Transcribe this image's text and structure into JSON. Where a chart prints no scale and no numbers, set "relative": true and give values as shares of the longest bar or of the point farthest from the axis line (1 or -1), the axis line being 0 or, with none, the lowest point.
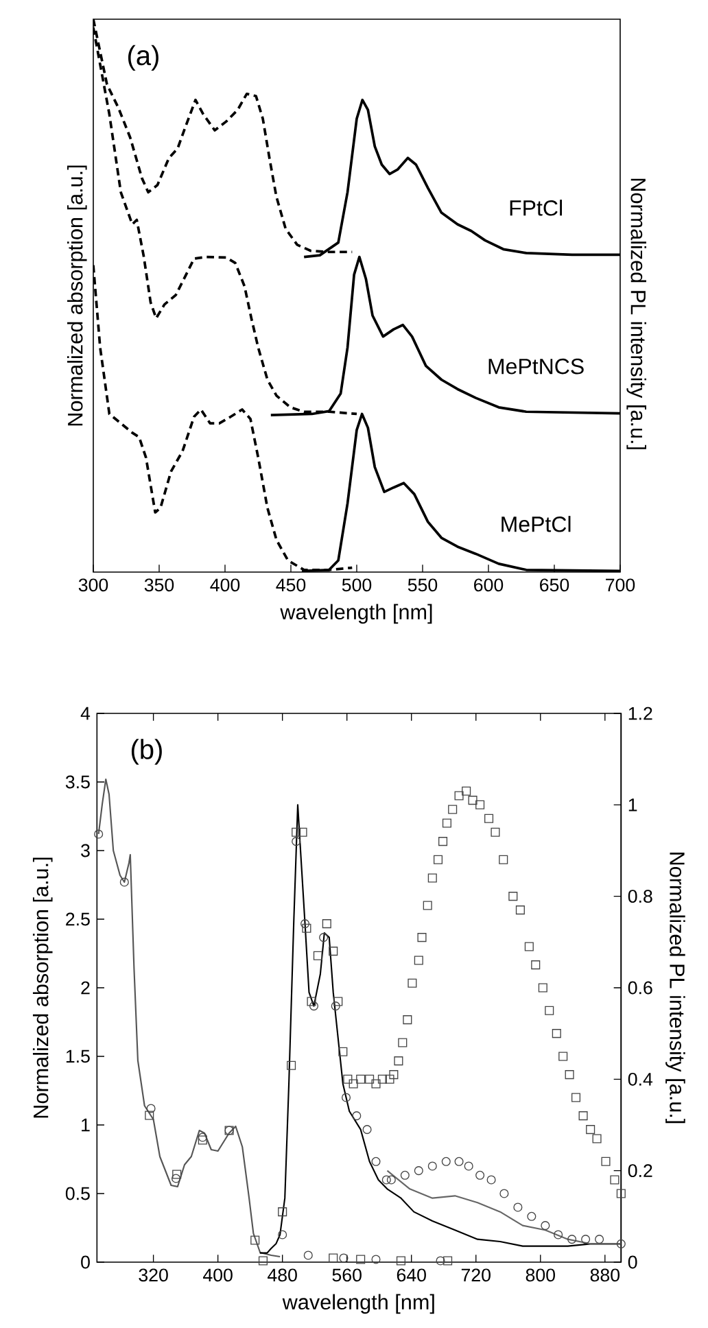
{
  "chart_data": [
    {
      "type": "line",
      "relative": true,
      "xlabel": "wavelength [nm]",
      "ylabel": "Normalized absorption [a.u.]",
      "y2label": "Normalized PL intensity [a.u.]",
      "annotations": [
        "(a)"
      ],
      "xlim": [
        300,
        700
      ],
      "xticks": [
        300,
        350,
        400,
        450,
        500,
        550,
        600,
        650,
        700
      ],
      "tick_labels": "x",
      "series": [
        {
          "color": "#000000",
          "line_style": "dashed",
          "x": [
            300,
            310.4,
            319,
            328,
            337,
            341.7,
            348.7,
            357.4,
            364,
            369.6,
            377.6,
            383.5,
            392.2,
            400.9,
            409.6,
            416.5,
            423.5,
            428.7,
            434,
            439,
            446,
            454.8,
            465.2,
            479,
            496.5
          ],
          "values": [
            1.0,
            0.882,
            0.84,
            0.786,
            0.712,
            0.687,
            0.7,
            0.749,
            0.766,
            0.803,
            0.854,
            0.828,
            0.799,
            0.815,
            0.836,
            0.865,
            0.861,
            0.82,
            0.745,
            0.679,
            0.621,
            0.592,
            0.581,
            0.579,
            0.579
          ]
        },
        {
          "name": "FPtCl",
          "color": "#000000",
          "line_style": "solid",
          "x": [
            460,
            472,
            486,
            493,
            500,
            504.3,
            508.5,
            513.7,
            519,
            525,
            531,
            538.8,
            545,
            554,
            564.3,
            576.5,
            587,
            597.4,
            611.3,
            628.7,
            663.5,
            700
          ],
          "values": [
            0.57,
            0.573,
            0.596,
            0.687,
            0.82,
            0.854,
            0.836,
            0.77,
            0.737,
            0.72,
            0.728,
            0.749,
            0.737,
            0.695,
            0.65,
            0.629,
            0.617,
            0.6,
            0.584,
            0.577,
            0.574,
            0.574
          ]
        },
        {
          "color": "#000000",
          "line_style": "dashed",
          "x": [
            300,
            312.2,
            320.9,
            329.6,
            333,
            338.3,
            343.5,
            347.7,
            354,
            362.6,
            369.6,
            376.5,
            385.2,
            400.9,
            407.8,
            414.8,
            420,
            425.2,
            432.2,
            439.1,
            449.6,
            460,
            479,
            500
          ],
          "values": [
            0.985,
            0.828,
            0.687,
            0.629,
            0.637,
            0.571,
            0.488,
            0.459,
            0.484,
            0.501,
            0.534,
            0.567,
            0.57,
            0.569,
            0.559,
            0.517,
            0.459,
            0.406,
            0.348,
            0.319,
            0.298,
            0.29,
            0.29,
            0.286
          ]
        },
        {
          "name": "MePtNCS",
          "color": "#000000",
          "line_style": "solid",
          "x": [
            434.8,
            466,
            479,
            487.8,
            493,
            498,
            502,
            507,
            512,
            520,
            528,
            535,
            542,
            552.5,
            564.3,
            576.5,
            590.4,
            607.8,
            628.7,
            700
          ],
          "values": [
            0.284,
            0.286,
            0.291,
            0.323,
            0.406,
            0.538,
            0.57,
            0.53,
            0.464,
            0.426,
            0.439,
            0.447,
            0.426,
            0.373,
            0.348,
            0.331,
            0.315,
            0.298,
            0.29,
            0.287
          ]
        },
        {
          "color": "#000000",
          "line_style": "dashed",
          "x": [
            300,
            305.2,
            312.2,
            320.9,
            329.6,
            334.8,
            340,
            347,
            351,
            359,
            367.8,
            376.5,
            381.7,
            388.7,
            395.7,
            404.3,
            413,
            419.3,
            425.2,
            432.2,
            439.1,
            447.8,
            460,
            479,
            496.5
          ],
          "values": [
            0.555,
            0.406,
            0.286,
            0.269,
            0.252,
            0.244,
            0.207,
            0.108,
            0.116,
            0.182,
            0.219,
            0.281,
            0.294,
            0.269,
            0.269,
            0.281,
            0.294,
            0.277,
            0.207,
            0.116,
            0.058,
            0.021,
            0.004,
            0.004,
            0.008
          ]
        },
        {
          "name": "MePtCl",
          "color": "#000000",
          "line_style": "solid",
          "x": [
            458.3,
            479,
            486,
            493,
            500,
            504,
            508.5,
            513.7,
            520.9,
            528,
            535.7,
            543.7,
            554,
            564.3,
            576.5,
            590.4,
            607.8,
            628.7,
            700
          ],
          "values": [
            0.002,
            0.004,
            0.021,
            0.124,
            0.257,
            0.286,
            0.261,
            0.19,
            0.145,
            0.153,
            0.161,
            0.141,
            0.091,
            0.062,
            0.046,
            0.033,
            0.015,
            0.004,
            0.002
          ]
        }
      ]
    },
    {
      "type": "line",
      "xlabel": "wavelength [nm]",
      "ylabel": "Normalized absorption [a.u.]",
      "y2label": "Normalized PL intensity [a.u.]",
      "annotations": [
        "(b)"
      ],
      "xlim": [
        250,
        900
      ],
      "xticks": [
        320,
        400,
        480,
        560,
        640,
        720,
        800,
        880
      ],
      "ylim": [
        0,
        4
      ],
      "yticks": [
        0,
        0.5,
        1,
        1.5,
        2,
        2.5,
        3,
        3.5,
        4
      ],
      "y2lim": [
        0,
        1.2
      ],
      "y2ticks": [
        0,
        0.2,
        0.4,
        0.6,
        0.8,
        1,
        1.2
      ],
      "series": [
        {
          "type": "line",
          "color": "#555555",
          "line_style": "solid",
          "x": [
            252,
            256.6,
            261,
            265,
            270.3,
            278.6,
            284,
            289.7,
            291.3,
            296,
            300.7,
            309,
            320,
            328,
            342,
            350,
            358.6,
            367,
            377,
            383.4,
            391.7,
            400,
            413.8,
            422,
            430.3,
            438.6,
            444,
            452.4,
            466.2,
            477
          ],
          "values": [
            3.12,
            3.34,
            3.52,
            3.41,
            3.0,
            2.82,
            2.77,
            2.91,
            2.97,
            2.14,
            1.47,
            1.14,
            1.04,
            0.77,
            0.56,
            0.55,
            0.71,
            0.77,
            0.96,
            0.94,
            0.82,
            0.81,
            0.94,
            0.99,
            0.84,
            0.47,
            0.21,
            0.07,
            0.05,
            0.04
          ]
        },
        {
          "type": "scatter",
          "marker": "circle",
          "color": "#444444",
          "x": [
            252,
            284,
            317,
            348,
            381,
            414,
            455,
            512,
            556,
            596,
            636,
            676
          ],
          "values": [
            3.12,
            2.77,
            1.12,
            0.61,
            0.91,
            0.96,
            null,
            0.05,
            0.03,
            0.02,
            null,
            0.01
          ]
        },
        {
          "type": "scatter",
          "marker": "square",
          "color": "#444444",
          "x": [
            315,
            349,
            381,
            414,
            446,
            456,
            543,
            577,
            627,
            685
          ],
          "values": [
            1.07,
            0.64,
            0.89,
            0.96,
            0.16,
            0.01,
            0.03,
            0.02,
            0.01,
            0.01
          ]
        },
        {
          "type": "line",
          "axis": "y2",
          "color": "#000000",
          "line_style": "solid",
          "x": [
            452,
            461,
            466,
            472,
            477,
            483,
            488,
            494,
            499,
            508,
            513,
            519,
            527,
            532,
            538,
            543,
            555,
            563,
            577,
            588,
            599,
            610,
            627,
            643,
            666,
            694,
            722,
            750,
            778,
            806,
            834,
            862,
            900
          ],
          "values": [
            0.02,
            0.02,
            0.03,
            0.04,
            0.06,
            0.14,
            0.39,
            0.74,
            1.0,
            0.74,
            0.59,
            0.56,
            0.63,
            0.72,
            0.71,
            0.59,
            0.39,
            0.33,
            0.29,
            0.22,
            0.18,
            0.16,
            0.14,
            0.11,
            0.09,
            0.07,
            0.05,
            0.045,
            0.035,
            0.035,
            0.035,
            0.04,
            0.04
          ]
        },
        {
          "type": "line",
          "axis": "y2",
          "color": "#666666",
          "line_style": "solid",
          "x": [
            610,
            638,
            666,
            694,
            722,
            750,
            778,
            806,
            834,
            862,
            900
          ],
          "values": [
            0.2,
            0.16,
            0.14,
            0.145,
            0.13,
            0.11,
            0.08,
            0.07,
            0.05,
            0.04,
            0.04
          ]
        },
        {
          "type": "scatter",
          "axis": "y2",
          "marker": "circle",
          "color": "#444444",
          "x": [
            480,
            497,
            502,
            508,
            519,
            531,
            546,
            559,
            572,
            585,
            596,
            609,
            615,
            632,
            649,
            666,
            683,
            699,
            711,
            725,
            739,
            755,
            772,
            789,
            806,
            822,
            839,
            856,
            873,
            900
          ],
          "values": [
            0.06,
            0.92,
            null,
            0.74,
            0.56,
            0.71,
            0.56,
            0.36,
            0.32,
            0.29,
            0.22,
            0.18,
            0.18,
            0.19,
            0.2,
            0.21,
            0.22,
            0.22,
            0.21,
            0.19,
            0.18,
            0.15,
            0.12,
            0.1,
            0.08,
            0.06,
            0.05,
            0.05,
            0.05,
            0.04
          ]
        },
        {
          "type": "scatter",
          "axis": "y2",
          "marker": "square",
          "color": "#444444",
          "x": [
            480,
            491,
            497,
            505,
            510,
            516,
            524,
            535,
            543,
            549,
            555,
            561,
            568,
            577,
            588,
            596,
            604,
            613,
            618,
            624,
            629,
            635,
            641,
            649,
            653,
            660,
            666,
            673,
            679,
            684,
            691,
            699,
            708,
            716,
            725,
            736,
            744,
            754,
            766,
            775,
            786,
            794,
            803,
            811,
            820,
            828,
            836,
            844,
            853,
            862,
            870,
            881,
            892,
            900
          ],
          "values": [
            0.11,
            0.43,
            0.94,
            0.94,
            0.73,
            0.57,
            0.67,
            0.74,
            0.68,
            0.57,
            0.46,
            0.4,
            0.39,
            0.4,
            0.4,
            0.39,
            0.4,
            0.4,
            0.41,
            0.44,
            0.48,
            0.53,
            0.61,
            0.66,
            0.71,
            0.78,
            0.84,
            0.88,
            0.92,
            0.96,
            0.99,
            1.02,
            1.03,
            1.01,
            1.0,
            0.97,
            0.94,
            0.88,
            0.8,
            0.77,
            0.69,
            0.65,
            0.6,
            0.55,
            0.5,
            0.45,
            0.41,
            0.36,
            0.32,
            0.29,
            0.27,
            0.22,
            0.18,
            0.15
          ]
        }
      ]
    }
  ]
}
